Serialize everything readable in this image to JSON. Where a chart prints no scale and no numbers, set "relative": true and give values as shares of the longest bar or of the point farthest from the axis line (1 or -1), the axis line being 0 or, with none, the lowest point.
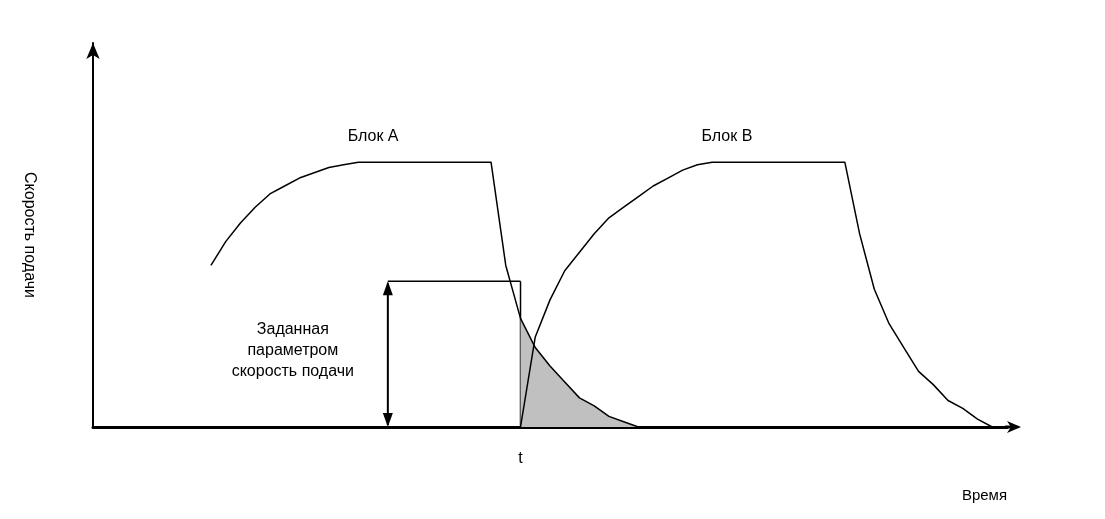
{
  "chart_data": {
    "type": "line",
    "relative": true,
    "xlabel": "Время",
    "ylabel": "Скорость подачи",
    "annotations": [
      "Заданная параметром скорость подачи",
      "t"
    ],
    "legend": false,
    "grid": false,
    "marker": "none",
    "line_style": "solid",
    "categories": [
      null,
      null,
      null,
      null,
      null,
      null,
      null,
      null,
      null,
      null,
      null,
      null,
      null,
      null,
      null,
      null,
      null,
      null,
      null,
      null,
      null,
      null,
      null,
      null,
      null,
      null,
      null,
      null,
      null,
      null,
      null,
      null,
      null,
      null,
      null,
      null,
      null,
      null,
      null,
      null,
      null,
      null,
      null,
      null,
      null,
      null,
      null,
      null,
      null,
      null,
      null,
      null,
      null,
      null,
      null,
      null,
      null,
      null,
      null,
      null,
      null,
      null,
      null
    ],
    "series": [
      {
        "name": "Блок А",
        "color": "#000000",
        "values": [
          null,
          null,
          null,
          null,
          null,
          null,
          null,
          null,
          0.61,
          0.7,
          0.77,
          0.83,
          0.88,
          0.91,
          0.94,
          0.96,
          0.98,
          0.99,
          1,
          1,
          1,
          1,
          1,
          1,
          1,
          1,
          1,
          1,
          0.61,
          0.41,
          0.3,
          0.23,
          0.17,
          0.11,
          0.08,
          0.04,
          0.02,
          0,
          null,
          null,
          null,
          null,
          null,
          null,
          null,
          null,
          null,
          null,
          null,
          null,
          null,
          null,
          null,
          null,
          null,
          null,
          null,
          null,
          null,
          null,
          null,
          null,
          null
        ]
      },
      {
        "name": "Блок В",
        "color": "#000000",
        "values": [
          null,
          null,
          null,
          null,
          null,
          null,
          null,
          null,
          null,
          null,
          null,
          null,
          null,
          null,
          null,
          null,
          null,
          null,
          null,
          null,
          null,
          null,
          null,
          null,
          null,
          null,
          null,
          null,
          null,
          0,
          0.34,
          0.48,
          0.59,
          0.66,
          0.73,
          0.79,
          0.83,
          0.87,
          0.91,
          0.94,
          0.97,
          0.99,
          1,
          1,
          1,
          1,
          1,
          1,
          1,
          1,
          1,
          1,
          0.73,
          0.52,
          0.39,
          0.3,
          0.21,
          0.16,
          0.1,
          0.07,
          0.03,
          0,
          null
        ]
      },
      {
        "type": "area",
        "color": "#c0c0c0",
        "values": [
          null,
          null,
          null,
          null,
          null,
          null,
          null,
          null,
          null,
          null,
          null,
          null,
          null,
          null,
          null,
          null,
          null,
          null,
          null,
          null,
          null,
          null,
          null,
          null,
          null,
          null,
          null,
          null,
          null,
          0.41,
          0.3,
          0.23,
          0.17,
          0.11,
          0.08,
          0.04,
          0.02,
          0,
          null,
          null,
          null,
          null,
          null,
          null,
          null,
          null,
          null,
          null,
          null,
          null,
          null,
          null,
          null,
          null,
          null,
          null,
          null,
          null,
          null,
          null,
          null,
          null,
          null
        ]
      },
      {
        "color": "#000000",
        "values": [
          null,
          null,
          null,
          null,
          null,
          null,
          null,
          null,
          null,
          null,
          null,
          null,
          null,
          null,
          null,
          null,
          null,
          null,
          null,
          null,
          0.55,
          0.55,
          0.55,
          0.55,
          0.55,
          0.55,
          0.55,
          0.55,
          0.55,
          0.55,
          null,
          null,
          null,
          null,
          null,
          null,
          null,
          null,
          null,
          null,
          null,
          null,
          null,
          null,
          null,
          null,
          null,
          null,
          null,
          null,
          null,
          null,
          null,
          null,
          null,
          null,
          null,
          null,
          null,
          null,
          null,
          null,
          null
        ]
      }
    ]
  }
}
